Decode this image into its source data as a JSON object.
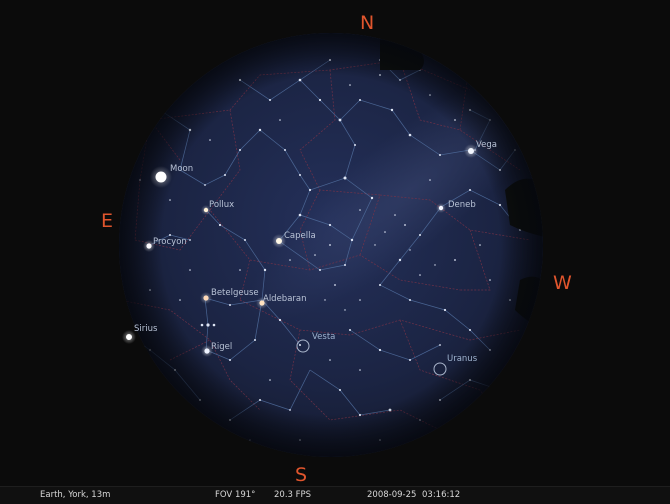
{
  "app": "Stellarium",
  "cardinals": {
    "north": "N",
    "south": "S",
    "east": "E",
    "west": "W"
  },
  "objects": [
    {
      "name": "Moon",
      "kind": "moon"
    },
    {
      "name": "Vega",
      "kind": "star"
    },
    {
      "name": "Pollux",
      "kind": "star"
    },
    {
      "name": "Deneb",
      "kind": "star"
    },
    {
      "name": "Capella",
      "kind": "star"
    },
    {
      "name": "Procyon",
      "kind": "star"
    },
    {
      "name": "Betelgeuse",
      "kind": "star"
    },
    {
      "name": "Aldebaran",
      "kind": "star"
    },
    {
      "name": "Sirius",
      "kind": "star"
    },
    {
      "name": "Rigel",
      "kind": "star"
    },
    {
      "name": "Vesta",
      "kind": "planet"
    },
    {
      "name": "Uranus",
      "kind": "planet"
    }
  ],
  "status_bar": {
    "location": "Earth, York, 13m",
    "fov": "FOV 191°",
    "fps": "20.3 FPS",
    "date": "2008-09-25",
    "time": "03:16:12"
  },
  "colors": {
    "background": "#0b0b0b",
    "sky": "#1b2440",
    "cardinal": "#e0552d",
    "constellation_line": "#4e6a99",
    "boundary": "#7a3348",
    "label": "#b9c3d6",
    "status_bar": "#101010"
  }
}
